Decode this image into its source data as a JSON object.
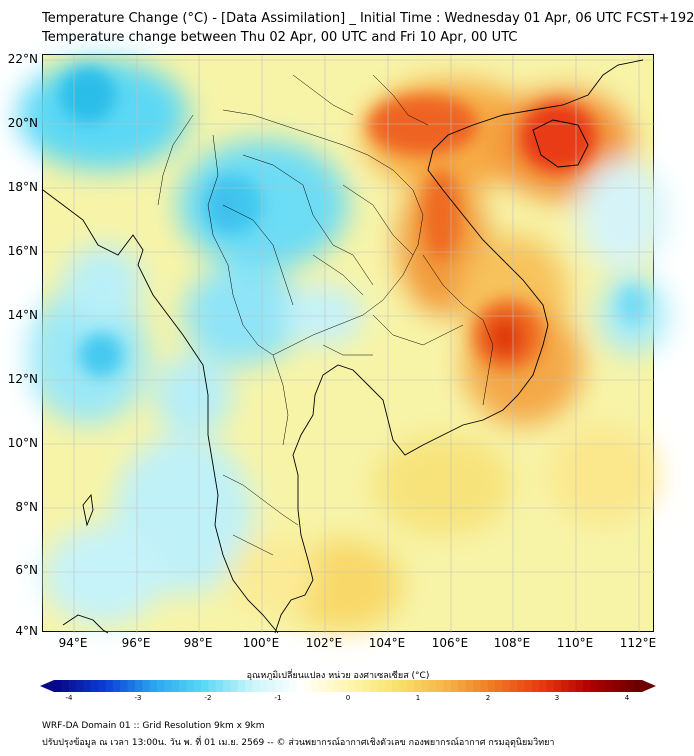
{
  "header": {
    "title_line1": "Temperature Change (°C) - [Data Assimilation] _ Initial Time : Wednesday 01 Apr, 06 UTC FCST+192",
    "title_line2": "Temperature change between Thu 02 Apr, 00 UTC and Fri 10 Apr, 00 UTC"
  },
  "map": {
    "lat_range": [
      4,
      22
    ],
    "lon_range": [
      93,
      112.5
    ],
    "lat_labels": [
      "22°N",
      "20°N",
      "18°N",
      "16°N",
      "14°N",
      "12°N",
      "10°N",
      "8°N",
      "6°N",
      "4°N"
    ],
    "lon_labels": [
      "94°E",
      "96°E",
      "98°E",
      "100°E",
      "102°E",
      "104°E",
      "106°E",
      "108°E",
      "110°E",
      "112°E"
    ]
  },
  "colorbar": {
    "title": "อุณหภูมิเปลี่ยนแปลง หน่วย องศาเซลเซียส (°C)",
    "min": -4,
    "max": 4,
    "ticks": [
      "-4",
      "-3",
      "-2",
      "-1",
      "0",
      "1",
      "2",
      "3",
      "4"
    ],
    "colors": [
      "#08088a",
      "#0b3fd6",
      "#2aa6f0",
      "#58d9f5",
      "#c8f4fa",
      "#ffffff",
      "#fff6b0",
      "#f7e36a",
      "#f6b54a",
      "#ef7a22",
      "#e83a10",
      "#b00000",
      "#6b0000"
    ]
  },
  "footer": {
    "line1": "WRF-DA Domain 01 :: Grid Resolution 9km x 9km",
    "line2": "ปรับปรุงข้อมูล ณ เวลา 13:00น. วัน พ. ที่ 01 เม.ย. 2569 -- © ส่วนพยากรณ์อากาศเชิงตัวเลข กองพยากรณ์อากาศ กรมอุตุนิยมวิทยา"
  }
}
